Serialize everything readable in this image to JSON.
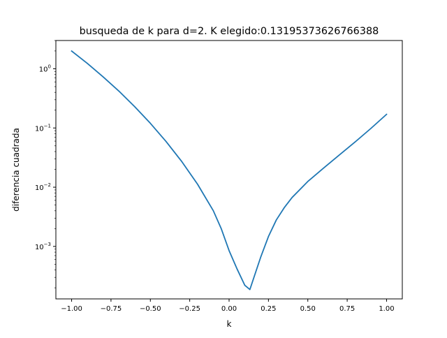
{
  "chart_data": {
    "type": "line",
    "title": "busqueda de k para d=2. K elegido:0.13195373626766388",
    "xlabel": "k",
    "ylabel": "diferencia cuadrada",
    "xscale": "linear",
    "yscale": "log",
    "xlim": [
      -1.1,
      1.1
    ],
    "ylim": [
      0.00013,
      3.0
    ],
    "grid": false,
    "xticks": [
      {
        "value": -1.0,
        "label": "−1.00"
      },
      {
        "value": -0.75,
        "label": "−0.75"
      },
      {
        "value": -0.5,
        "label": "−0.50"
      },
      {
        "value": -0.25,
        "label": "−0.25"
      },
      {
        "value": 0.0,
        "label": "0.00"
      },
      {
        "value": 0.25,
        "label": "0.25"
      },
      {
        "value": 0.5,
        "label": "0.50"
      },
      {
        "value": 0.75,
        "label": "0.75"
      },
      {
        "value": 1.0,
        "label": "1.00"
      }
    ],
    "yticks": [
      {
        "value": 0.001,
        "base": "10",
        "exp": "−3"
      },
      {
        "value": 0.01,
        "base": "10",
        "exp": "−2"
      },
      {
        "value": 0.1,
        "base": "10",
        "exp": "−1"
      },
      {
        "value": 1,
        "base": "10",
        "exp": "0"
      }
    ],
    "series": [
      {
        "color": "#1f77b4",
        "points": [
          [
            -1.0,
            1.99
          ],
          [
            -0.9,
            1.23
          ],
          [
            -0.8,
            0.73
          ],
          [
            -0.7,
            0.42
          ],
          [
            -0.6,
            0.23
          ],
          [
            -0.5,
            0.12
          ],
          [
            -0.4,
            0.059
          ],
          [
            -0.3,
            0.027
          ],
          [
            -0.2,
            0.0112
          ],
          [
            -0.1,
            0.004
          ],
          [
            -0.05,
            0.002
          ],
          [
            0.0,
            0.00085
          ],
          [
            0.05,
            0.00042
          ],
          [
            0.1,
            0.00022
          ],
          [
            0.132,
            0.000187
          ],
          [
            0.15,
            0.00026
          ],
          [
            0.2,
            0.00065
          ],
          [
            0.25,
            0.00147
          ],
          [
            0.3,
            0.0028
          ],
          [
            0.35,
            0.0045
          ],
          [
            0.4,
            0.0067
          ],
          [
            0.5,
            0.0125
          ],
          [
            0.6,
            0.021
          ],
          [
            0.7,
            0.035
          ],
          [
            0.8,
            0.058
          ],
          [
            0.9,
            0.098
          ],
          [
            1.0,
            0.17
          ]
        ]
      }
    ]
  }
}
